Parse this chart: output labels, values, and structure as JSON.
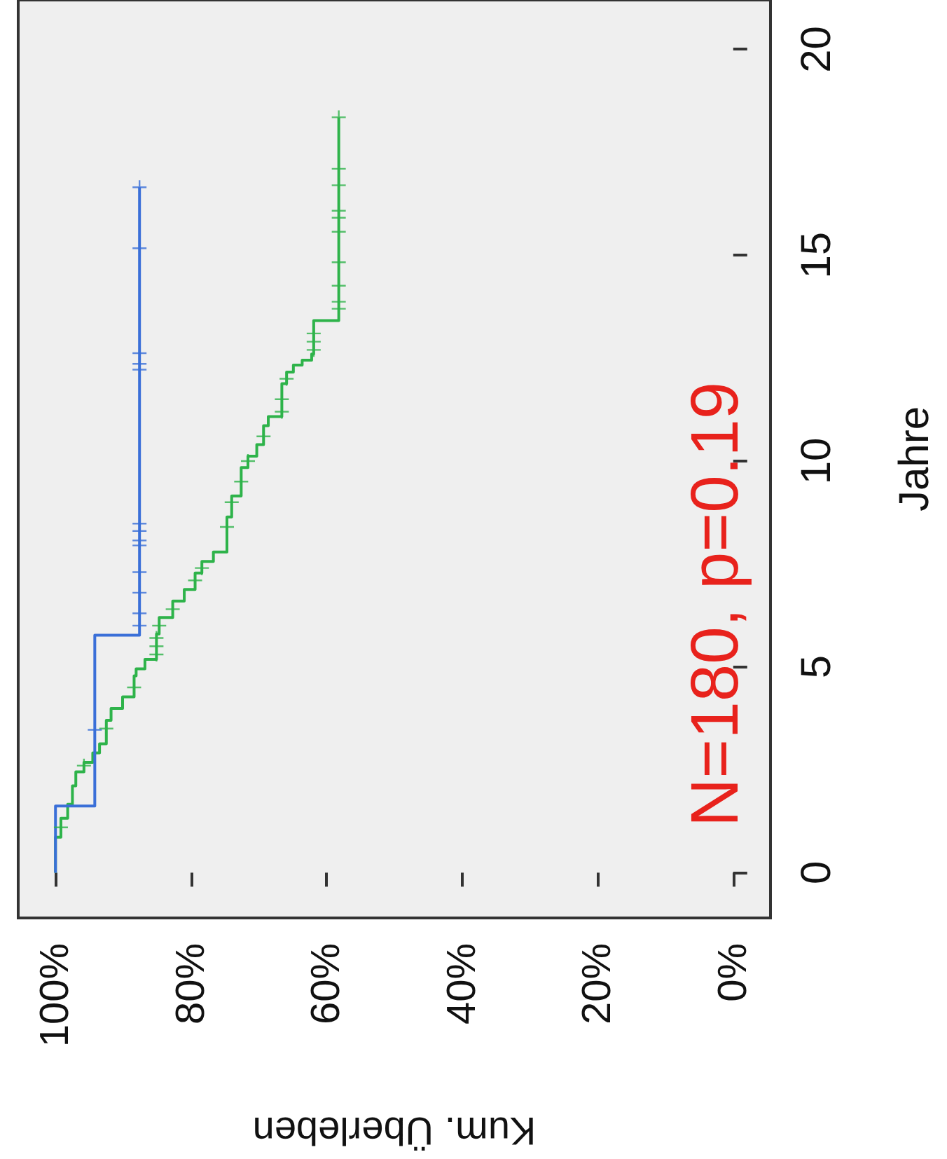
{
  "chart_data": {
    "type": "step",
    "xlabel": "Kum. Überleben",
    "ylabel": "Jahre",
    "annotations": [
      "N=180, p=0.19"
    ],
    "ylim": [
      -1.1,
      21.2
    ],
    "yticks": [
      0,
      5,
      10,
      15,
      20
    ],
    "xlim": [
      105.5,
      -5.5
    ],
    "xticks": [
      {
        "value": 100,
        "label": "100%"
      },
      {
        "value": 80,
        "label": "80%"
      },
      {
        "value": 60,
        "label": "60%"
      },
      {
        "value": 40,
        "label": "40%"
      },
      {
        "value": 20,
        "label": "20%"
      },
      {
        "value": 0,
        "label": "0%"
      }
    ],
    "series": [
      {
        "type": "step",
        "color": "#2eb34a",
        "marker": "none",
        "values": [
          0,
          0.86,
          1.32,
          1.66,
          2.11,
          2.45,
          2.68,
          2.91,
          3.13,
          3.7,
          3.99,
          4.27,
          4.78,
          4.95,
          5.18,
          5.8,
          6.2,
          6.6,
          6.88,
          7.28,
          7.56,
          7.79,
          8.64,
          9.15,
          9.84,
          10.12,
          10.4,
          10.86,
          11.08,
          11.88,
          12.16,
          12.33,
          12.45,
          12.6,
          13.41,
          18.35
        ],
        "x": [
          100,
          99.2,
          98.2,
          97.5,
          97,
          95.8,
          94.5,
          93.5,
          92.5,
          91.8,
          90.1,
          88.4,
          88.1,
          86.8,
          85.1,
          84.7,
          82.7,
          81,
          79.4,
          78.4,
          76.7,
          74.7,
          74,
          72.6,
          71.6,
          70.3,
          69.3,
          68.6,
          66.6,
          65.9,
          64.9,
          63.6,
          62.2,
          61.9,
          58.2,
          58.2
        ]
      },
      {
        "type": "step",
        "color": "#3a6fd8",
        "marker": "none",
        "values": [
          0,
          1.62,
          5.77,
          16.65
        ],
        "x": [
          100,
          94.2,
          87.6,
          87.6
        ]
      },
      {
        "type": "scatter",
        "color": "#2eb34a",
        "marker": "cross",
        "values": [
          1.1,
          2.6,
          3.5,
          4.5,
          5.3,
          5.5,
          5.7,
          6,
          6.4,
          7.1,
          7.4,
          8.4,
          9,
          9.5,
          10,
          10.6,
          11.2,
          11.5,
          12,
          12.7,
          12.9,
          13.1,
          13.7,
          13.87,
          14.26,
          14.83,
          15.57,
          15.91,
          16.08,
          16.7,
          17.1,
          18.35
        ],
        "x": [
          99.2,
          95.8,
          92.5,
          88.4,
          85.1,
          85.1,
          85.1,
          84.7,
          82.7,
          79.4,
          78.4,
          74.7,
          74,
          72.6,
          71.6,
          69.3,
          66.6,
          66.6,
          65.9,
          61.9,
          61.9,
          61.9,
          58.2,
          58.2,
          58.2,
          58.2,
          58.2,
          58.2,
          58.2,
          58.2,
          58.2,
          58.2
        ]
      },
      {
        "type": "scatter",
        "color": "#3a6fd8",
        "marker": "cross",
        "values": [
          3.47,
          6,
          6.3,
          6.8,
          7.3,
          7.95,
          8.07,
          8.3,
          8.48,
          12.22,
          12.36,
          12.62,
          15.17,
          16.65
        ],
        "x": [
          94.2,
          87.6,
          87.6,
          87.6,
          87.6,
          87.6,
          87.6,
          87.6,
          87.6,
          87.6,
          87.6,
          87.6,
          87.6,
          87.6
        ]
      }
    ]
  }
}
